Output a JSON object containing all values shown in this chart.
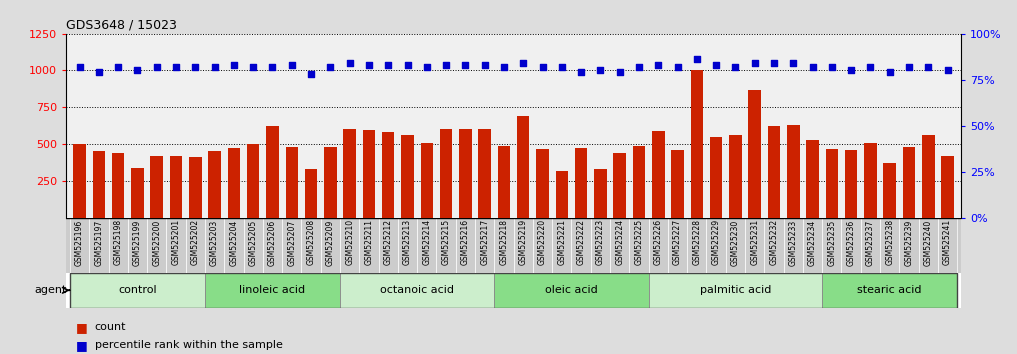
{
  "title": "GDS3648 / 15023",
  "samples": [
    "GSM525196",
    "GSM525197",
    "GSM525198",
    "GSM525199",
    "GSM525200",
    "GSM525201",
    "GSM525202",
    "GSM525203",
    "GSM525204",
    "GSM525205",
    "GSM525206",
    "GSM525207",
    "GSM525208",
    "GSM525209",
    "GSM525210",
    "GSM525211",
    "GSM525212",
    "GSM525213",
    "GSM525214",
    "GSM525215",
    "GSM525216",
    "GSM525217",
    "GSM525218",
    "GSM525219",
    "GSM525220",
    "GSM525221",
    "GSM525222",
    "GSM525223",
    "GSM525224",
    "GSM525225",
    "GSM525226",
    "GSM525227",
    "GSM525228",
    "GSM525229",
    "GSM525230",
    "GSM525231",
    "GSM525232",
    "GSM525233",
    "GSM525234",
    "GSM525235",
    "GSM525236",
    "GSM525237",
    "GSM525238",
    "GSM525239",
    "GSM525240",
    "GSM525241"
  ],
  "counts": [
    500,
    450,
    440,
    340,
    420,
    420,
    415,
    455,
    475,
    500,
    620,
    480,
    330,
    480,
    600,
    595,
    580,
    565,
    510,
    605,
    605,
    600,
    490,
    690,
    465,
    320,
    470,
    330,
    440,
    490,
    590,
    460,
    1000,
    550,
    560,
    870,
    620,
    630,
    530,
    465,
    460,
    510,
    370,
    480,
    565,
    420
  ],
  "percentiles": [
    82,
    79,
    82,
    80,
    82,
    82,
    82,
    82,
    83,
    82,
    82,
    83,
    78,
    82,
    84,
    83,
    83,
    83,
    82,
    83,
    83,
    83,
    82,
    84,
    82,
    82,
    79,
    80,
    79,
    82,
    83,
    82,
    86,
    83,
    82,
    84,
    84,
    84,
    82,
    82,
    80,
    82,
    79,
    82,
    82,
    80
  ],
  "groups": [
    {
      "label": "control",
      "start": 0,
      "end": 6,
      "color": "#cceecc"
    },
    {
      "label": "linoleic acid",
      "start": 7,
      "end": 13,
      "color": "#88dd88"
    },
    {
      "label": "octanoic acid",
      "start": 14,
      "end": 21,
      "color": "#cceecc"
    },
    {
      "label": "oleic acid",
      "start": 22,
      "end": 29,
      "color": "#88dd88"
    },
    {
      "label": "palmitic acid",
      "start": 30,
      "end": 38,
      "color": "#cceecc"
    },
    {
      "label": "stearic acid",
      "start": 39,
      "end": 45,
      "color": "#88dd88"
    }
  ],
  "bar_color": "#cc2200",
  "dot_color": "#0000cc",
  "ylim_left": [
    0,
    1250
  ],
  "ylim_right": [
    0,
    100
  ],
  "yticks_left": [
    250,
    500,
    750,
    1000,
    1250
  ],
  "yticks_right": [
    0,
    25,
    50,
    75,
    100
  ],
  "bg_color": "#dddddd",
  "plot_bg": "#f0f0f0",
  "xtick_bg": "#cccccc",
  "agent_label": "agent",
  "legend_count_label": "count",
  "legend_pct_label": "percentile rank within the sample"
}
